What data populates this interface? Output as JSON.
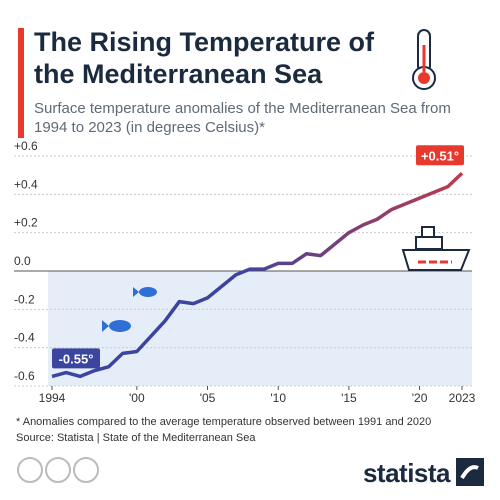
{
  "chart_data": {
    "type": "line",
    "title": "The Rising Temperature of the Mediterranean Sea",
    "subtitle": "Surface temperature anomalies of the Mediterranean Sea from 1994 to 2023 (in degrees Celsius)*",
    "x": [
      1994,
      1995,
      1996,
      1997,
      1998,
      1999,
      2000,
      2001,
      2002,
      2003,
      2004,
      2005,
      2006,
      2007,
      2008,
      2009,
      2010,
      2011,
      2012,
      2013,
      2014,
      2015,
      2016,
      2017,
      2018,
      2019,
      2020,
      2021,
      2022,
      2023
    ],
    "series": [
      {
        "name": "Surface temperature anomaly",
        "color": "#c0394b",
        "start_color": "#3b45a0",
        "values": [
          -0.55,
          -0.53,
          -0.55,
          -0.52,
          -0.5,
          -0.43,
          -0.42,
          -0.34,
          -0.26,
          -0.16,
          -0.17,
          -0.14,
          -0.08,
          -0.02,
          0.01,
          0.01,
          0.04,
          0.04,
          0.09,
          0.08,
          0.14,
          0.2,
          0.24,
          0.27,
          0.32,
          0.35,
          0.38,
          0.41,
          0.44,
          0.51
        ]
      }
    ],
    "annotations": [
      "-0.55°",
      "+0.51°"
    ],
    "xlim": [
      1994,
      2023
    ],
    "xticks": [
      {
        "value": 1994,
        "label": "1994"
      },
      {
        "value": 2000,
        "label": "'00"
      },
      {
        "value": 2005,
        "label": "'05"
      },
      {
        "value": 2010,
        "label": "'10"
      },
      {
        "value": 2015,
        "label": "'15"
      },
      {
        "value": 2020,
        "label": "'20"
      },
      {
        "value": 2023,
        "label": "2023"
      }
    ],
    "ylim": [
      -0.6,
      0.6
    ],
    "yticks": [
      {
        "value": 0.6,
        "label": "+0.6"
      },
      {
        "value": 0.4,
        "label": "+0.4"
      },
      {
        "value": 0.2,
        "label": "+0.2"
      },
      {
        "value": 0,
        "label": "0.0"
      },
      -0.2,
      -0.4,
      -0.6
    ],
    "grid": true,
    "footnote": "* Anomalies compared to the average temperature observed between 1991 and 2020",
    "source": "Source: Statista | State of the Mediterranean Sea",
    "brand": "statista"
  }
}
